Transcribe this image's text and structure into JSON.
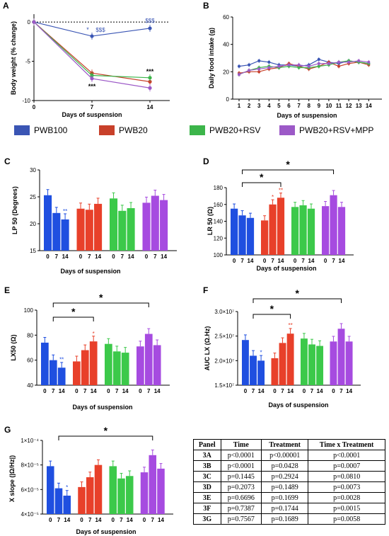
{
  "legend": [
    {
      "name": "PWB100",
      "color": "#3a55b4"
    },
    {
      "name": "PWB20",
      "color": "#c8402a"
    },
    {
      "name": "PWB20+RSV",
      "color": "#3cb54a"
    },
    {
      "name": "PWB20+RSV+MPP",
      "color": "#9c59c7"
    }
  ],
  "chart_data": [
    {
      "panel": "A",
      "type": "line",
      "xlabel": "Days of suspension",
      "ylabel": "Body weight (% change)",
      "x": [
        0,
        7,
        14
      ],
      "xticks": [
        "0",
        "7",
        "14"
      ],
      "ylim": [
        -10,
        1
      ],
      "yticks": [
        "0",
        "-5",
        "-10"
      ],
      "series": [
        {
          "name": "PWB100",
          "values": [
            0,
            -1.8,
            -0.8
          ]
        },
        {
          "name": "PWB20",
          "values": [
            0,
            -6.5,
            -7.6
          ]
        },
        {
          "name": "PWB20+RSV",
          "values": [
            0,
            -6.8,
            -7.1
          ]
        },
        {
          "name": "PWB20+RSV+MPP",
          "values": [
            0,
            -7.2,
            -8.4
          ]
        }
      ],
      "annotations": [
        "*",
        "$$$",
        "$$$",
        "***",
        "***"
      ]
    },
    {
      "panel": "B",
      "type": "line",
      "xlabel": "Days of suspension",
      "ylabel": "Daily food intake (g)",
      "x": [
        1,
        2,
        3,
        4,
        5,
        6,
        7,
        8,
        9,
        10,
        11,
        12,
        13,
        14
      ],
      "xticks": [
        "1",
        "2",
        "3",
        "4",
        "5",
        "6",
        "7",
        "8",
        "9",
        "10",
        "11",
        "12",
        "13",
        "14"
      ],
      "ylim": [
        0,
        60
      ],
      "yticks": [
        "0",
        "20",
        "40",
        "60"
      ],
      "series": [
        {
          "name": "PWB100",
          "values": [
            24,
            25,
            28,
            27,
            25,
            25,
            24,
            25,
            29,
            27,
            26,
            28,
            27,
            26
          ]
        },
        {
          "name": "PWB20",
          "values": [
            19,
            20,
            20,
            22,
            23,
            26,
            24,
            22,
            24,
            27,
            24,
            26,
            27,
            25
          ]
        },
        {
          "name": "PWB20+RSV",
          "values": [
            18,
            21,
            23,
            24,
            23,
            24,
            23,
            23,
            24,
            25,
            27,
            28,
            27,
            26
          ]
        },
        {
          "name": "PWB20+RSV+MPP",
          "values": [
            18,
            21,
            22,
            23,
            24,
            25,
            25,
            24,
            26,
            26,
            27,
            27,
            28,
            27
          ]
        }
      ]
    },
    {
      "panel": "C",
      "type": "bar",
      "xlabel": "Days of suspension",
      "ylabel": "LP 50 (Degrees)",
      "categories": [
        "0",
        "7",
        "14"
      ],
      "ylim": [
        15,
        30
      ],
      "yticks": [
        "15",
        "20",
        "25",
        "30"
      ],
      "series": [
        {
          "name": "PWB100",
          "values": [
            25.3,
            22.0,
            20.8
          ]
        },
        {
          "name": "PWB20",
          "values": [
            22.8,
            22.6,
            23.7
          ]
        },
        {
          "name": "PWB20+RSV",
          "values": [
            24.7,
            22.4,
            22.9
          ]
        },
        {
          "name": "PWB20+RSV+MPP",
          "values": [
            23.9,
            25.2,
            24.4
          ]
        }
      ],
      "annotations": [
        "**"
      ]
    },
    {
      "panel": "D",
      "type": "bar",
      "xlabel": "Days of suspension",
      "ylabel": "LR 50 (Ω)",
      "categories": [
        "0",
        "7",
        "14"
      ],
      "ylim": [
        100,
        180
      ],
      "yticks": [
        "100",
        "120",
        "140",
        "160",
        "180"
      ],
      "series": [
        {
          "name": "PWB100",
          "values": [
            155,
            147,
            144
          ]
        },
        {
          "name": "PWB20",
          "values": [
            141,
            160,
            168
          ]
        },
        {
          "name": "PWB20+RSV",
          "values": [
            157,
            159,
            155
          ]
        },
        {
          "name": "PWB20+RSV+MPP",
          "values": [
            158,
            171,
            157
          ]
        }
      ],
      "annotations": [
        "*",
        "*",
        "*",
        "**"
      ]
    },
    {
      "panel": "E",
      "type": "bar",
      "xlabel": "Days of suspension",
      "ylabel": "LX50 (Ω)",
      "categories": [
        "0",
        "7",
        "14"
      ],
      "ylim": [
        40,
        100
      ],
      "yticks": [
        "40",
        "60",
        "80",
        "100"
      ],
      "series": [
        {
          "name": "PWB100",
          "values": [
            74,
            60,
            54
          ]
        },
        {
          "name": "PWB20",
          "values": [
            59,
            68,
            75
          ]
        },
        {
          "name": "PWB20+RSV",
          "values": [
            73,
            67,
            66
          ]
        },
        {
          "name": "PWB20+RSV+MPP",
          "values": [
            71,
            81,
            72
          ]
        }
      ],
      "annotations": [
        "*",
        "*",
        "**",
        "*"
      ]
    },
    {
      "panel": "F",
      "type": "bar",
      "xlabel": "Days of suspension",
      "ylabel": "AUC LX (Ω.Hz)",
      "categories": [
        "0",
        "7",
        "14"
      ],
      "ylim": [
        15000000,
        30000000
      ],
      "yticks": [
        "1.5×10⁷",
        "2.0×10⁷",
        "2.5×10⁷",
        "3.0×10⁷"
      ],
      "series": [
        {
          "name": "PWB100",
          "values": [
            24200000,
            21000000,
            20000000
          ]
        },
        {
          "name": "PWB20",
          "values": [
            20500000,
            23600000,
            25500000
          ]
        },
        {
          "name": "PWB20+RSV",
          "values": [
            24500000,
            23300000,
            23000000
          ]
        },
        {
          "name": "PWB20+RSV+MPP",
          "values": [
            23900000,
            26500000,
            23900000
          ]
        }
      ],
      "annotations": [
        "*",
        "*",
        "*",
        "**"
      ]
    },
    {
      "panel": "G",
      "type": "bar",
      "xlabel": "Days of suspension",
      "ylabel": "X slope (|Ω/Hz|)",
      "categories": [
        "0",
        "7",
        "14"
      ],
      "ylim": [
        4e-05,
        0.0001
      ],
      "yticks": [
        "4×10⁻⁵",
        "6×10⁻⁵",
        "8×10⁻⁵",
        "1×10⁻⁴"
      ],
      "series": [
        {
          "name": "PWB100",
          "values": [
            7.9e-05,
            6.1e-05,
            5.5e-05
          ]
        },
        {
          "name": "PWB20",
          "values": [
            6.2e-05,
            7e-05,
            8e-05
          ]
        },
        {
          "name": "PWB20+RSV",
          "values": [
            7.9e-05,
            6.9e-05,
            7.1e-05
          ]
        },
        {
          "name": "PWB20+RSV+MPP",
          "values": [
            7.4e-05,
            8.8e-05,
            7.7e-05
          ]
        }
      ],
      "annotations": [
        "*",
        "*"
      ]
    },
    {
      "panel": "table",
      "type": "table",
      "columns": [
        "Panel",
        "Time",
        "Treatment",
        "Time x Treatment"
      ],
      "rows": [
        [
          "3A",
          "p<0.0001",
          "p<0.00001",
          "p<0.0001"
        ],
        [
          "3B",
          "p<0.0001",
          "p=0.0428",
          "p=0.0007"
        ],
        [
          "3C",
          "p=0.1445",
          "p=0.2924",
          "p=0.0810"
        ],
        [
          "3D",
          "p=0.2073",
          "p=0.1489",
          "p=0.0073"
        ],
        [
          "3E",
          "p=0.6696",
          "p=0.1699",
          "p=0.0028"
        ],
        [
          "3F",
          "p=0.7387",
          "p=0.1744",
          "p=0.0015"
        ],
        [
          "3G",
          "p=0.7567",
          "p=0.1689",
          "p=0.0058"
        ]
      ]
    }
  ]
}
